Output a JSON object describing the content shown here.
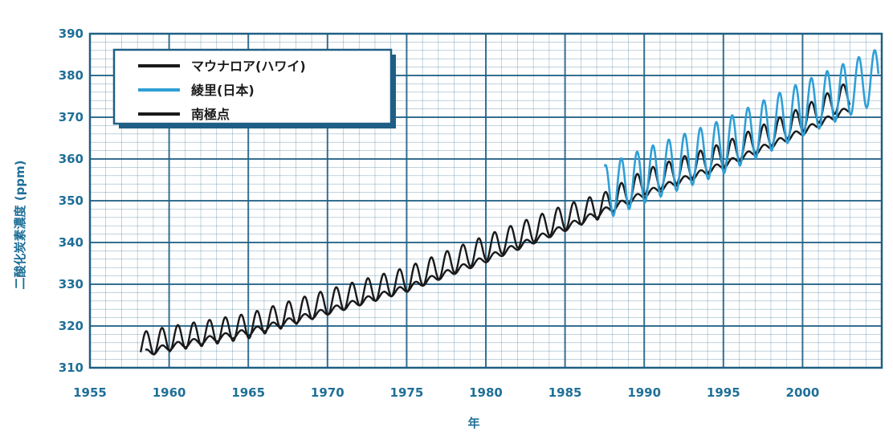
{
  "chart_data": {
    "type": "line",
    "xlabel": "年",
    "ylabel": "二酸化炭素濃度 (ppm)",
    "xlim": [
      1955,
      2005
    ],
    "ylim": [
      310,
      390
    ],
    "x_ticks": [
      "1955",
      "1960",
      "1965",
      "1970",
      "1975",
      "1980",
      "1985",
      "1990",
      "1995",
      "2000"
    ],
    "y_ticks": [
      "310",
      "320",
      "330",
      "340",
      "350",
      "360",
      "370",
      "380",
      "390"
    ],
    "grid": true,
    "legend_position": "top-left",
    "colors": {
      "mauna_loa": "#1a1a1a",
      "ryori": "#2f9fd6",
      "south_pole": "#1a1a1a",
      "grid": "#1f5f85",
      "axis_text": "#1f6f98"
    },
    "series": [
      {
        "name": "マウナロア(ハワイ)",
        "color": "#1a1a1a",
        "seasonal_amplitude": 3,
        "x": [
          1958.2,
          1960,
          1965,
          1970,
          1975,
          1980,
          1985,
          1987.5,
          1990,
          1995,
          2000,
          2003
        ],
        "y": [
          315.5,
          316.9,
          320.0,
          325.7,
          331.1,
          338.7,
          346.0,
          349.0,
          354.4,
          360.9,
          369.5,
          375.8
        ]
      },
      {
        "name": "綾里(日本)",
        "color": "#2f9fd6",
        "seasonal_amplitude": 6.5,
        "x": [
          1987.5,
          1990,
          1995,
          2000,
          2004.8
        ],
        "y": [
          352.0,
          356.0,
          363.0,
          372.0,
          380.0
        ]
      },
      {
        "name": "南極点",
        "color": "#1a1a1a",
        "seasonal_amplitude": 0.8,
        "x": [
          1958.5,
          1960,
          1965,
          1970,
          1975,
          1980,
          1985,
          1990,
          1995,
          2000,
          2003
        ],
        "y": [
          313.5,
          315.0,
          318.5,
          323.5,
          329.0,
          336.0,
          343.5,
          351.5,
          358.5,
          366.5,
          372.0
        ]
      }
    ]
  }
}
